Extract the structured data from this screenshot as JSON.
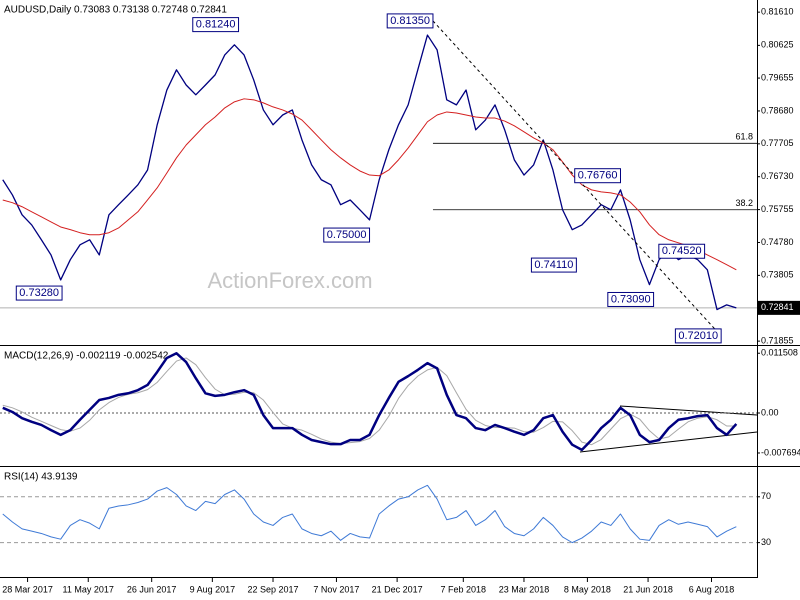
{
  "chart_data": [
    {
      "type": "line",
      "title": "AUDUSD,Daily  0.73083 0.73138 0.72748 0.72841",
      "watermark": "ActionForex.com",
      "xlim": [
        "2017-03-08",
        "2018-09-08"
      ],
      "x": [
        "2017-03-10",
        "2017-03-17",
        "2017-03-24",
        "2017-03-31",
        "2017-04-07",
        "2017-04-14",
        "2017-04-21",
        "2017-04-28",
        "2017-05-05",
        "2017-05-12",
        "2017-05-19",
        "2017-05-26",
        "2017-06-02",
        "2017-06-09",
        "2017-06-16",
        "2017-06-23",
        "2017-06-30",
        "2017-07-07",
        "2017-07-14",
        "2017-07-21",
        "2017-07-28",
        "2017-08-04",
        "2017-08-11",
        "2017-08-18",
        "2017-08-25",
        "2017-09-01",
        "2017-09-08",
        "2017-09-15",
        "2017-09-22",
        "2017-09-29",
        "2017-10-06",
        "2017-10-13",
        "2017-10-20",
        "2017-10-27",
        "2017-11-03",
        "2017-11-10",
        "2017-11-17",
        "2017-11-24",
        "2017-12-01",
        "2017-12-08",
        "2017-12-15",
        "2017-12-22",
        "2017-12-29",
        "2018-01-05",
        "2018-01-12",
        "2018-01-19",
        "2018-01-26",
        "2018-02-02",
        "2018-02-09",
        "2018-02-16",
        "2018-02-23",
        "2018-03-02",
        "2018-03-09",
        "2018-03-16",
        "2018-03-23",
        "2018-03-30",
        "2018-04-06",
        "2018-04-13",
        "2018-04-20",
        "2018-04-27",
        "2018-05-04",
        "2018-05-11",
        "2018-05-18",
        "2018-05-25",
        "2018-06-01",
        "2018-06-08",
        "2018-06-15",
        "2018-06-22",
        "2018-06-29",
        "2018-07-06",
        "2018-07-13",
        "2018-07-20",
        "2018-07-27",
        "2018-08-03",
        "2018-08-10",
        "2018-08-17",
        "2018-08-24"
      ],
      "series": [
        {
          "color": "#000080",
          "width": 1.3,
          "values": [
            0.7664,
            0.7619,
            0.756,
            0.753,
            0.7486,
            0.7441,
            0.7367,
            0.7427,
            0.7471,
            0.7486,
            0.7441,
            0.756,
            0.759,
            0.7619,
            0.7649,
            0.7693,
            0.7827,
            0.793,
            0.799,
            0.7945,
            0.7916,
            0.7945,
            0.7975,
            0.8034,
            0.8064,
            0.8034,
            0.796,
            0.7871,
            0.7827,
            0.7856,
            0.7871,
            0.7782,
            0.7708,
            0.7664,
            0.7649,
            0.759,
            0.7604,
            0.7575,
            0.7545,
            0.7664,
            0.7753,
            0.7827,
            0.7886,
            0.799,
            0.8093,
            0.8049,
            0.7901,
            0.7886,
            0.793,
            0.7812,
            0.7841,
            0.7886,
            0.7812,
            0.7723,
            0.7678,
            0.7708,
            0.7782,
            0.7693,
            0.7575,
            0.7516,
            0.753,
            0.756,
            0.759,
            0.7575,
            0.7634,
            0.7545,
            0.7427,
            0.7353,
            0.7427,
            0.7456,
            0.7427,
            0.7441,
            0.7427,
            0.7397,
            0.7279,
            0.7293,
            0.7284
          ]
        },
        {
          "color": "#d42020",
          "width": 1,
          "values": [
            0.7604,
            0.7596,
            0.7584,
            0.7569,
            0.7554,
            0.7539,
            0.7524,
            0.7516,
            0.7507,
            0.7501,
            0.7501,
            0.7507,
            0.7521,
            0.7545,
            0.7569,
            0.7604,
            0.764,
            0.7684,
            0.7729,
            0.7767,
            0.7797,
            0.7827,
            0.785,
            0.7877,
            0.7895,
            0.7904,
            0.7901,
            0.7892,
            0.788,
            0.7871,
            0.7859,
            0.7841,
            0.7812,
            0.7782,
            0.7753,
            0.7729,
            0.7708,
            0.769,
            0.7678,
            0.7676,
            0.7693,
            0.7723,
            0.7758,
            0.7797,
            0.7836,
            0.7856,
            0.7865,
            0.7862,
            0.7856,
            0.785,
            0.7847,
            0.7847,
            0.7838,
            0.7824,
            0.7806,
            0.7788,
            0.7773,
            0.7753,
            0.7717,
            0.7678,
            0.7649,
            0.7634,
            0.7628,
            0.7625,
            0.7619,
            0.7598,
            0.7569,
            0.753,
            0.7501,
            0.7486,
            0.7477,
            0.7468,
            0.7456,
            0.7441,
            0.7427,
            0.7412,
            0.7397
          ]
        }
      ],
      "ylim": [
        0.7174,
        0.8197
      ],
      "yticks": [
        {
          "value": 0.8161,
          "label": "0.81610"
        },
        0.80625,
        0.79655,
        {
          "value": 0.7868,
          "label": "0.78680"
        },
        0.77705,
        {
          "value": 0.7673,
          "label": "0.76730"
        },
        0.75755,
        {
          "value": 0.7478,
          "label": "0.74780"
        },
        0.73805,
        0.71855
      ],
      "last": {
        "value": 0.72841,
        "label": "0.72841"
      },
      "annotations": [
        {
          "x": "2017-08-28",
          "value": 0.8124,
          "label": "0.81240"
        },
        {
          "x": "2018-01-16",
          "value": 0.8135,
          "label": "0.81350"
        },
        {
          "x": "2017-12-01",
          "value": 0.75,
          "label": "0.75000"
        },
        {
          "x": "2017-04-22",
          "value": 0.7328,
          "label": "0.73280"
        },
        {
          "x": "2018-06-01",
          "value": 0.7676,
          "label": "0.76760"
        },
        {
          "x": "2018-04-30",
          "value": 0.7411,
          "label": "0.74110"
        },
        {
          "x": "2018-08-01",
          "value": 0.7452,
          "label": "0.74520"
        },
        {
          "x": "2018-06-25",
          "value": 0.7309,
          "label": "0.73090"
        },
        {
          "x": "2018-08-13",
          "value": 0.7201,
          "label": "0.72010"
        }
      ],
      "levels": [
        {
          "from": "2018-01-16",
          "value": 0.7772,
          "label": "61.8"
        },
        {
          "from": "2018-01-16",
          "value": 0.7575,
          "label": "38.2"
        }
      ]
    },
    {
      "type": "line",
      "title": "MACD(12,26,9) -0.002119 -0.002542",
      "xlim": [
        "2017-03-08",
        "2018-09-08"
      ],
      "x": [
        "2017-03-10",
        "2017-03-17",
        "2017-03-24",
        "2017-03-31",
        "2017-04-07",
        "2017-04-14",
        "2017-04-21",
        "2017-04-28",
        "2017-05-05",
        "2017-05-12",
        "2017-05-19",
        "2017-05-26",
        "2017-06-02",
        "2017-06-09",
        "2017-06-16",
        "2017-06-23",
        "2017-06-30",
        "2017-07-07",
        "2017-07-14",
        "2017-07-21",
        "2017-07-28",
        "2017-08-04",
        "2017-08-11",
        "2017-08-18",
        "2017-08-25",
        "2017-09-01",
        "2017-09-08",
        "2017-09-15",
        "2017-09-22",
        "2017-09-29",
        "2017-10-06",
        "2017-10-13",
        "2017-10-20",
        "2017-10-27",
        "2017-11-03",
        "2017-11-10",
        "2017-11-17",
        "2017-11-24",
        "2017-12-01",
        "2017-12-08",
        "2017-12-15",
        "2017-12-22",
        "2017-12-29",
        "2018-01-05",
        "2018-01-12",
        "2018-01-19",
        "2018-01-26",
        "2018-02-02",
        "2018-02-09",
        "2018-02-16",
        "2018-02-23",
        "2018-03-02",
        "2018-03-09",
        "2018-03-16",
        "2018-03-23",
        "2018-03-30",
        "2018-04-06",
        "2018-04-13",
        "2018-04-20",
        "2018-04-27",
        "2018-05-04",
        "2018-05-11",
        "2018-05-18",
        "2018-05-25",
        "2018-06-01",
        "2018-06-08",
        "2018-06-15",
        "2018-06-22",
        "2018-06-29",
        "2018-07-06",
        "2018-07-13",
        "2018-07-20",
        "2018-07-27",
        "2018-08-03",
        "2018-08-10",
        "2018-08-17",
        "2018-08-24"
      ],
      "series": [
        {
          "color": "#a8a8a8",
          "width": 1,
          "values": [
            0.0015,
            0.001,
            0.0002,
            -0.0008,
            -0.0016,
            -0.0024,
            -0.0032,
            -0.0035,
            -0.0029,
            -0.0014,
            0.0006,
            0.002,
            0.003,
            0.0036,
            0.0039,
            0.0045,
            0.0059,
            0.008,
            0.01,
            0.0106,
            0.0093,
            0.0068,
            0.0046,
            0.0035,
            0.0036,
            0.004,
            0.0039,
            0.0025,
            0.0001,
            -0.0021,
            -0.0029,
            -0.0033,
            -0.0041,
            -0.005,
            -0.0056,
            -0.0059,
            -0.0057,
            -0.0055,
            -0.0049,
            -0.0033,
            -0.0006,
            0.0028,
            0.0053,
            0.0071,
            0.0083,
            0.0088,
            0.0072,
            0.0039,
            0.0007,
            -0.0014,
            -0.0024,
            -0.0028,
            -0.0028,
            -0.0029,
            -0.0036,
            -0.0037,
            -0.0028,
            -0.0016,
            -0.0017,
            -0.0034,
            -0.0056,
            -0.0061,
            -0.0051,
            -0.0031,
            -0.0011,
            -0.0002,
            -0.0012,
            -0.0034,
            -0.005,
            -0.0046,
            -0.0031,
            -0.0017,
            -0.001,
            -0.0007,
            -0.0013,
            -0.0025,
            -0.0025
          ]
        },
        {
          "color": "#000080",
          "width": 2.5,
          "values": [
            0.001,
            0.0002,
            -0.001,
            -0.0017,
            -0.0023,
            -0.0033,
            -0.0042,
            -0.0033,
            -0.0013,
            0.0006,
            0.0025,
            0.0029,
            0.0035,
            0.0038,
            0.0044,
            0.0054,
            0.0079,
            0.0106,
            0.0115,
            0.0098,
            0.0067,
            0.0038,
            0.0033,
            0.0035,
            0.004,
            0.0044,
            0.0035,
            -0.0004,
            -0.0029,
            -0.0029,
            -0.0029,
            -0.0042,
            -0.0052,
            -0.0056,
            -0.006,
            -0.006,
            -0.0052,
            -0.0052,
            -0.0042,
            -0.0004,
            0.0029,
            0.006,
            0.0071,
            0.0083,
            0.0096,
            0.0086,
            0.0035,
            -0.0004,
            -0.001,
            -0.0029,
            -0.0033,
            -0.0023,
            -0.0029,
            -0.0036,
            -0.0042,
            -0.0033,
            -0.001,
            -0.0004,
            -0.0036,
            -0.0061,
            -0.0071,
            -0.0052,
            -0.0029,
            -0.0013,
            0.001,
            -0.0004,
            -0.0042,
            -0.0056,
            -0.0052,
            -0.0029,
            -0.0013,
            -0.001,
            -0.0006,
            -0.0004,
            -0.0029,
            -0.0042,
            -0.0021
          ]
        }
      ],
      "ylim": [
        -0.0102,
        0.0129
      ],
      "yticks": [
        0.011508,
        {
          "value": 0,
          "label": "0.00"
        },
        -0.007694
      ]
    },
    {
      "type": "line",
      "title": "RSI(14) 43.9139",
      "xlim": [
        "2017-03-08",
        "2018-09-08"
      ],
      "x": [
        "2017-03-10",
        "2017-03-17",
        "2017-03-24",
        "2017-03-31",
        "2017-04-07",
        "2017-04-14",
        "2017-04-21",
        "2017-04-28",
        "2017-05-05",
        "2017-05-12",
        "2017-05-19",
        "2017-05-26",
        "2017-06-02",
        "2017-06-09",
        "2017-06-16",
        "2017-06-23",
        "2017-06-30",
        "2017-07-07",
        "2017-07-14",
        "2017-07-21",
        "2017-07-28",
        "2017-08-04",
        "2017-08-11",
        "2017-08-18",
        "2017-08-25",
        "2017-09-01",
        "2017-09-08",
        "2017-09-15",
        "2017-09-22",
        "2017-09-29",
        "2017-10-06",
        "2017-10-13",
        "2017-10-20",
        "2017-10-27",
        "2017-11-03",
        "2017-11-10",
        "2017-11-17",
        "2017-11-24",
        "2017-12-01",
        "2017-12-08",
        "2017-12-15",
        "2017-12-22",
        "2017-12-29",
        "2018-01-05",
        "2018-01-12",
        "2018-01-19",
        "2018-01-26",
        "2018-02-02",
        "2018-02-09",
        "2018-02-16",
        "2018-02-23",
        "2018-03-02",
        "2018-03-09",
        "2018-03-16",
        "2018-03-23",
        "2018-03-30",
        "2018-04-06",
        "2018-04-13",
        "2018-04-20",
        "2018-04-27",
        "2018-05-04",
        "2018-05-11",
        "2018-05-18",
        "2018-05-25",
        "2018-06-01",
        "2018-06-08",
        "2018-06-15",
        "2018-06-22",
        "2018-06-29",
        "2018-07-06",
        "2018-07-13",
        "2018-07-20",
        "2018-07-27",
        "2018-08-03",
        "2018-08-10",
        "2018-08-17",
        "2018-08-24"
      ],
      "series": [
        {
          "color": "#3f7ad6",
          "width": 1,
          "values": [
            55,
            48,
            42,
            40,
            38,
            35,
            33,
            45,
            50,
            47,
            42,
            60,
            62,
            63,
            65,
            68,
            75,
            78,
            72,
            62,
            58,
            66,
            64,
            72,
            76,
            68,
            55,
            48,
            45,
            52,
            55,
            42,
            38,
            36,
            40,
            32,
            38,
            35,
            34,
            55,
            62,
            68,
            70,
            76,
            80,
            68,
            50,
            52,
            58,
            45,
            50,
            58,
            44,
            38,
            36,
            42,
            52,
            45,
            35,
            30,
            34,
            40,
            48,
            45,
            55,
            42,
            33,
            32,
            45,
            50,
            46,
            48,
            46,
            44,
            35,
            40,
            43.9139
          ]
        }
      ],
      "ylim": [
        0,
        96
      ],
      "yticks": [
        70,
        30
      ],
      "grid": true,
      "xticks": [
        {
          "value": "2017-03-28",
          "label": "28 Mar 2017"
        },
        {
          "value": "2017-05-11",
          "label": "11 May 2017"
        },
        {
          "value": "2017-06-26",
          "label": "26 Jun 2017"
        },
        {
          "value": "2017-08-09",
          "label": "9 Aug 2017"
        },
        {
          "value": "2017-09-22",
          "label": "22 Sep 2017"
        },
        {
          "value": "2017-11-07",
          "label": "7 Nov 2017"
        },
        {
          "value": "2017-12-21",
          "label": "21 Dec 2017"
        },
        {
          "value": "2018-02-07",
          "label": "7 Feb 2018"
        },
        {
          "value": "2018-03-23",
          "label": "23 Mar 2018"
        },
        {
          "value": "2018-05-08",
          "label": "8 May 2018"
        },
        {
          "value": "2018-06-21",
          "label": "21 Jun 2018"
        },
        {
          "value": "2018-08-06",
          "label": "6 Aug 2018"
        }
      ]
    }
  ]
}
